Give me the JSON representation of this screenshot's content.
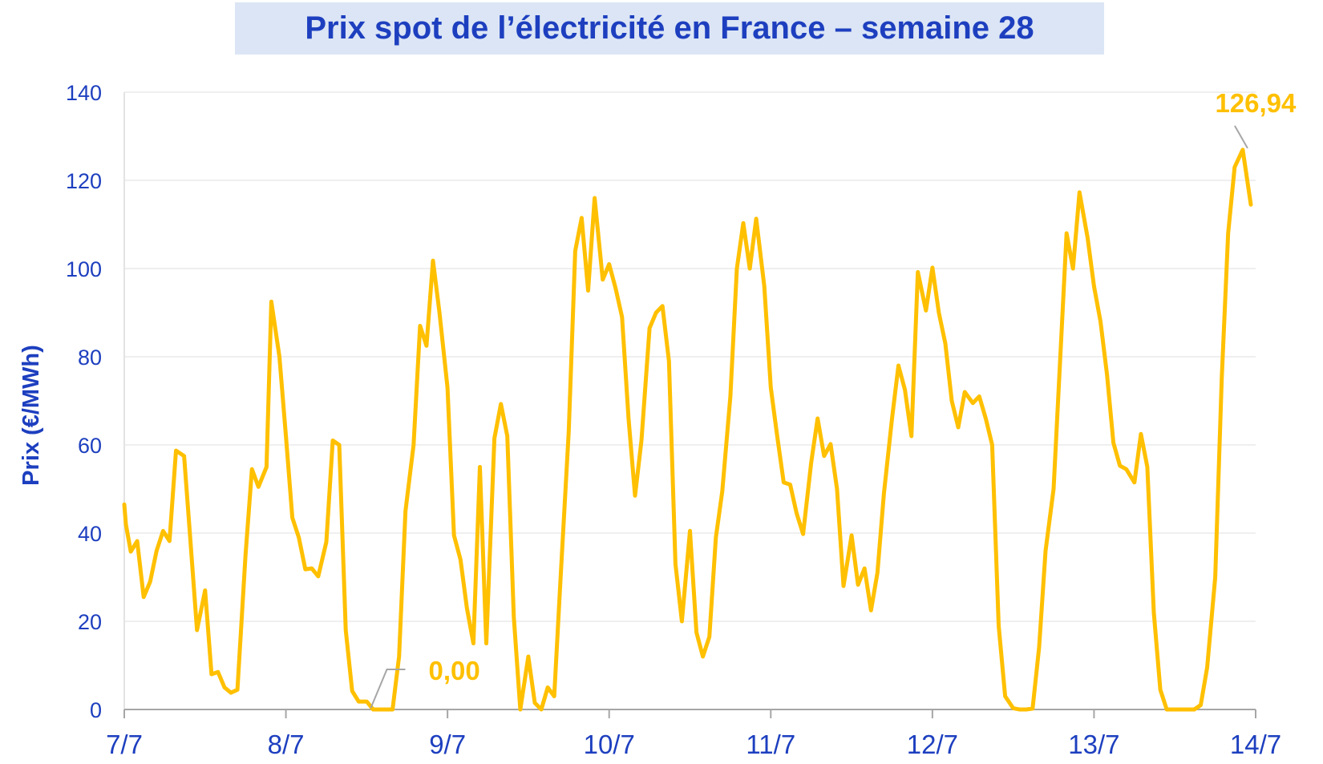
{
  "colors": {
    "line": "#FFC000",
    "axis_text": "#1d3fbf",
    "title_bg": "#dbe5f5",
    "grid": "#eaeaea"
  },
  "chart_data": {
    "type": "line",
    "title": "Prix spot de l’électricité en France – semaine 28",
    "ylabel": "Prix (€/MWh)",
    "xlabel": "",
    "ylim": [
      0,
      140
    ],
    "yticks": [
      0,
      20,
      40,
      60,
      80,
      100,
      120,
      140
    ],
    "xlim": [
      0,
      7
    ],
    "x_tick_labels": [
      "7/7",
      "8/7",
      "9/7",
      "10/7",
      "11/7",
      "12/7",
      "13/7",
      "14/7"
    ],
    "grid": "horizontal",
    "annotations": [
      {
        "text": "0,00",
        "x": 1.6,
        "y": 0
      },
      {
        "text": "126,94",
        "x": 6.96,
        "y": 126.94
      }
    ],
    "series": [
      {
        "values": [
          [
            0.0,
            46.5
          ],
          [
            0.01,
            42
          ],
          [
            0.04,
            35.8
          ],
          [
            0.08,
            38.2
          ],
          [
            0.12,
            25.5
          ],
          [
            0.16,
            29
          ],
          [
            0.2,
            36
          ],
          [
            0.24,
            40.5
          ],
          [
            0.28,
            38.2
          ],
          [
            0.32,
            58.7
          ],
          [
            0.37,
            57.5
          ],
          [
            0.41,
            38
          ],
          [
            0.45,
            18
          ],
          [
            0.5,
            27
          ],
          [
            0.54,
            8
          ],
          [
            0.58,
            8.5
          ],
          [
            0.62,
            5
          ],
          [
            0.66,
            3.8
          ],
          [
            0.7,
            4.5
          ],
          [
            0.75,
            35
          ],
          [
            0.79,
            54.5
          ],
          [
            0.83,
            50.5
          ],
          [
            0.88,
            55
          ],
          [
            0.91,
            92.5
          ],
          [
            0.96,
            80
          ],
          [
            1.0,
            62
          ],
          [
            1.04,
            43.5
          ],
          [
            1.08,
            39
          ],
          [
            1.12,
            31.8
          ],
          [
            1.16,
            32
          ],
          [
            1.2,
            30.2
          ],
          [
            1.25,
            38
          ],
          [
            1.29,
            61
          ],
          [
            1.33,
            60
          ],
          [
            1.37,
            18
          ],
          [
            1.41,
            4.2
          ],
          [
            1.45,
            1.8
          ],
          [
            1.5,
            1.8
          ],
          [
            1.54,
            0
          ],
          [
            1.58,
            0
          ],
          [
            1.62,
            0
          ],
          [
            1.66,
            0
          ],
          [
            1.7,
            12
          ],
          [
            1.74,
            45
          ],
          [
            1.79,
            60
          ],
          [
            1.83,
            87
          ],
          [
            1.87,
            82.5
          ],
          [
            1.91,
            101.8
          ],
          [
            1.95,
            90
          ],
          [
            2.0,
            73
          ],
          [
            2.04,
            39.5
          ],
          [
            2.08,
            34
          ],
          [
            2.12,
            23
          ],
          [
            2.16,
            15
          ],
          [
            2.2,
            55
          ],
          [
            2.24,
            15
          ],
          [
            2.29,
            61.5
          ],
          [
            2.33,
            69.3
          ],
          [
            2.37,
            62
          ],
          [
            2.41,
            21
          ],
          [
            2.45,
            0
          ],
          [
            2.5,
            12
          ],
          [
            2.54,
            1.5
          ],
          [
            2.58,
            0
          ],
          [
            2.62,
            5
          ],
          [
            2.66,
            3
          ],
          [
            2.7,
            30
          ],
          [
            2.75,
            63
          ],
          [
            2.79,
            104
          ],
          [
            2.83,
            111.5
          ],
          [
            2.87,
            95
          ],
          [
            2.91,
            116
          ],
          [
            2.96,
            97.5
          ],
          [
            3.0,
            101
          ],
          [
            3.04,
            95.5
          ],
          [
            3.08,
            89
          ],
          [
            3.12,
            66
          ],
          [
            3.16,
            48.5
          ],
          [
            3.2,
            61
          ],
          [
            3.25,
            86.5
          ],
          [
            3.29,
            90
          ],
          [
            3.33,
            91.5
          ],
          [
            3.37,
            79
          ],
          [
            3.41,
            33
          ],
          [
            3.45,
            20
          ],
          [
            3.5,
            40.5
          ],
          [
            3.54,
            17.5
          ],
          [
            3.58,
            12
          ],
          [
            3.62,
            16.5
          ],
          [
            3.66,
            39
          ],
          [
            3.7,
            49.5
          ],
          [
            3.75,
            71
          ],
          [
            3.79,
            100
          ],
          [
            3.83,
            110.3
          ],
          [
            3.87,
            100
          ],
          [
            3.91,
            111.3
          ],
          [
            3.96,
            96
          ],
          [
            4.0,
            73
          ],
          [
            4.04,
            62
          ],
          [
            4.08,
            51.5
          ],
          [
            4.12,
            51
          ],
          [
            4.16,
            44.5
          ],
          [
            4.2,
            39.8
          ],
          [
            4.25,
            56
          ],
          [
            4.29,
            66
          ],
          [
            4.33,
            57.5
          ],
          [
            4.37,
            60.2
          ],
          [
            4.41,
            50
          ],
          [
            4.45,
            28
          ],
          [
            4.5,
            39.5
          ],
          [
            4.54,
            28.3
          ],
          [
            4.58,
            32
          ],
          [
            4.62,
            22.5
          ],
          [
            4.66,
            31
          ],
          [
            4.7,
            49
          ],
          [
            4.75,
            66
          ],
          [
            4.79,
            78
          ],
          [
            4.83,
            72.5
          ],
          [
            4.87,
            62
          ],
          [
            4.91,
            99.2
          ],
          [
            4.96,
            90.5
          ],
          [
            5.0,
            100.2
          ],
          [
            5.04,
            90
          ],
          [
            5.08,
            83
          ],
          [
            5.12,
            70
          ],
          [
            5.16,
            64
          ],
          [
            5.2,
            72
          ],
          [
            5.25,
            69.5
          ],
          [
            5.29,
            71
          ],
          [
            5.33,
            66
          ],
          [
            5.37,
            60
          ],
          [
            5.41,
            19
          ],
          [
            5.45,
            3
          ],
          [
            5.5,
            0.3
          ],
          [
            5.54,
            0
          ],
          [
            5.58,
            0
          ],
          [
            5.62,
            0.2
          ],
          [
            5.66,
            14
          ],
          [
            5.7,
            36
          ],
          [
            5.75,
            50
          ],
          [
            5.79,
            79
          ],
          [
            5.83,
            108
          ],
          [
            5.87,
            100
          ],
          [
            5.91,
            117.3
          ],
          [
            5.96,
            107
          ],
          [
            6.0,
            96
          ],
          [
            6.04,
            88
          ],
          [
            6.08,
            76
          ],
          [
            6.12,
            60.5
          ],
          [
            6.16,
            55.3
          ],
          [
            6.2,
            54.5
          ],
          [
            6.25,
            51.5
          ],
          [
            6.29,
            62.5
          ],
          [
            6.33,
            55
          ],
          [
            6.37,
            22
          ],
          [
            6.41,
            4.5
          ],
          [
            6.45,
            0
          ],
          [
            6.5,
            0
          ],
          [
            6.54,
            0
          ],
          [
            6.58,
            0
          ],
          [
            6.62,
            0
          ],
          [
            6.66,
            1
          ],
          [
            6.7,
            9.5
          ],
          [
            6.75,
            30
          ],
          [
            6.79,
            75
          ],
          [
            6.83,
            108
          ],
          [
            6.87,
            123
          ],
          [
            6.92,
            126.94
          ],
          [
            6.97,
            114.5
          ]
        ]
      }
    ]
  }
}
